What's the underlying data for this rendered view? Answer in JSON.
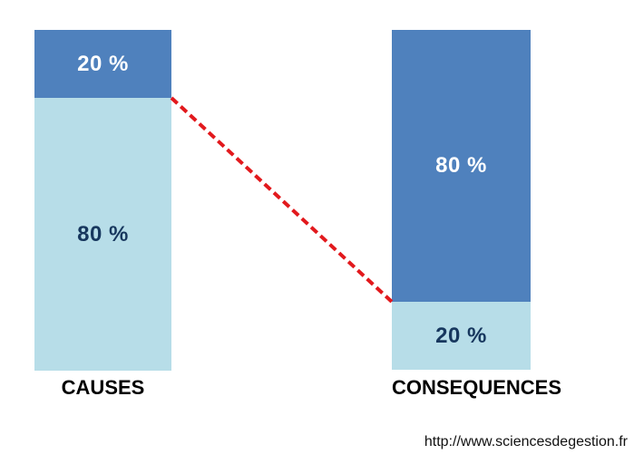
{
  "page": {
    "background": "#FFFFFF"
  },
  "footer": {
    "url": "http://www.sciencesdegestion.fr"
  },
  "chart_data": {
    "type": "bar",
    "subtype": "stacked-percentage",
    "title": "",
    "description": "Pareto principle 80/20 diagram: 20% of causes produce 80% of consequences",
    "categories": [
      "CAUSES",
      "CONSEQUENCES"
    ],
    "series": [
      {
        "name": "dark-blue-segment",
        "values": [
          20,
          80
        ]
      },
      {
        "name": "light-blue-segment",
        "values": [
          80,
          20
        ]
      }
    ],
    "bars": [
      {
        "category": "CAUSES",
        "segments": [
          {
            "label": "20 %",
            "value": 20,
            "color": "#4F81BD",
            "text_color": "#FFFFFF"
          },
          {
            "label": "80 %",
            "value": 80,
            "color": "#B7DDE8",
            "text_color": "#17375E"
          }
        ]
      },
      {
        "category": "CONSEQUENCES",
        "segments": [
          {
            "label": "80 %",
            "value": 80,
            "color": "#4F81BD",
            "text_color": "#FFFFFF"
          },
          {
            "label": "20 %",
            "value": 20,
            "color": "#B7DDE8",
            "text_color": "#17375E"
          }
        ]
      }
    ],
    "connector": {
      "style": "dashed",
      "color": "#E2191D",
      "stroke_width": 4,
      "from": "CAUSES bar 20/80 boundary (right edge)",
      "to": "CONSEQUENCES bar 80/20 boundary (left edge)"
    },
    "colors": {
      "dark_blue": "#4F81BD",
      "light_blue": "#B7DDE8",
      "label_navy": "#17375E",
      "category_label": "#000000",
      "connector_red": "#E2191D"
    },
    "legend": null,
    "grid": false,
    "axes_visible": false
  }
}
